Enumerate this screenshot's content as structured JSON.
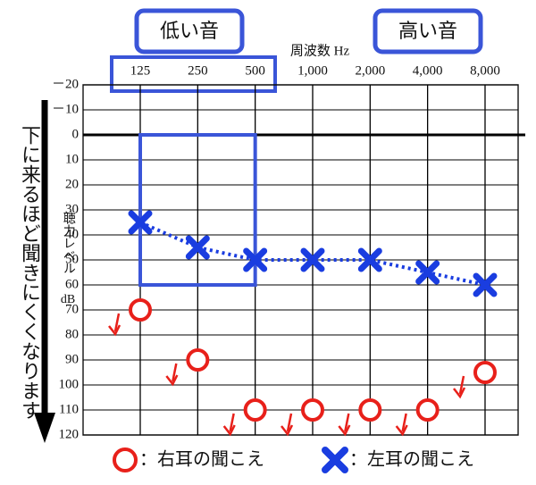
{
  "chart_data": {
    "type": "audiogram",
    "x_label": "周波数 Hz",
    "low_label": "低い音",
    "high_label": "高い音",
    "y_label": "聴力レベル",
    "y_unit": "dB",
    "side_note": "下に来るほど聞きにくくなります",
    "categories": [
      "125",
      "250",
      "500",
      "1,000",
      "2,000",
      "4,000",
      "8,000"
    ],
    "ylim": [
      -20,
      120
    ],
    "yticks": [
      {
        "value": -20,
        "label": "－20"
      },
      {
        "value": -10,
        "label": "－10"
      },
      0,
      10,
      20,
      30,
      40,
      50,
      60,
      70,
      80,
      90,
      100,
      110,
      120
    ],
    "grid": true,
    "series": [
      {
        "name": "：右耳の聞こえ",
        "marker": "circle",
        "color": "#e8201a",
        "values": [
          70,
          90,
          110,
          110,
          110,
          110,
          95
        ]
      },
      {
        "name": "：左耳の聞こえ",
        "marker": "cross",
        "color": "#1a3de0",
        "values": [
          35,
          45,
          50,
          50,
          50,
          55,
          60
        ]
      }
    ]
  }
}
